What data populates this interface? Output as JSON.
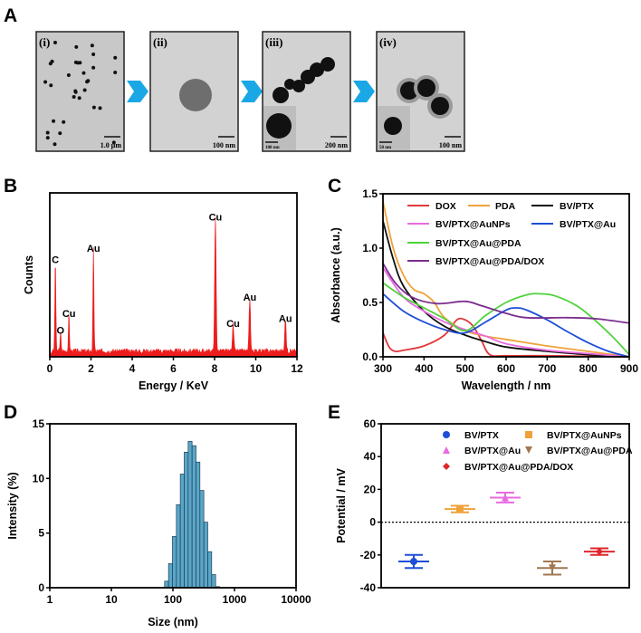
{
  "panels": {
    "A": "A",
    "B": "B",
    "C": "C",
    "D": "D",
    "E": "E"
  },
  "tem_images": [
    {
      "label": "(i)",
      "scale_bar": "1.0 μm"
    },
    {
      "label": "(ii)",
      "scale_bar": "100 nm"
    },
    {
      "label": "(iii)",
      "scale_bar": "200 nm",
      "inset_scale_bar": "100 nm"
    },
    {
      "label": "(iv)",
      "scale_bar": "100 nm",
      "inset_scale_bar": "50 nm"
    }
  ],
  "arrow_color": "#1aa7e6",
  "chart_data": [
    {
      "panel": "B",
      "type": "line",
      "xlabel": "Energy / KeV",
      "ylabel": "Counts",
      "xlim": [
        0,
        12
      ],
      "xticks": [
        0,
        2,
        4,
        6,
        8,
        10,
        12
      ],
      "color": "#ee1c1c",
      "peaks": [
        {
          "label": "C",
          "energy": 0.27,
          "counts": 0.55
        },
        {
          "label": "O",
          "energy": 0.52,
          "counts": 0.12
        },
        {
          "label": "Cu",
          "energy": 0.93,
          "counts": 0.22
        },
        {
          "label": "Au",
          "energy": 2.12,
          "counts": 0.62
        },
        {
          "label": "Cu",
          "energy": 8.04,
          "counts": 0.81
        },
        {
          "label": "Cu",
          "energy": 8.9,
          "counts": 0.16
        },
        {
          "label": "Au",
          "energy": 9.71,
          "counts": 0.32
        },
        {
          "label": "Au",
          "energy": 11.44,
          "counts": 0.19
        }
      ]
    },
    {
      "panel": "C",
      "type": "line",
      "xlabel": "Wavelength / nm",
      "ylabel": "Absorbance (a.u.)",
      "xlim": [
        300,
        900
      ],
      "ylim": [
        0,
        1.5
      ],
      "xticks": [
        300,
        400,
        500,
        600,
        700,
        800,
        900
      ],
      "yticks": [
        "0.0",
        "0.5",
        "1.0",
        "1.5"
      ],
      "legend": "top-right",
      "series": [
        {
          "name": "DOX",
          "color": "#e0393b",
          "x": [
            300,
            315,
            330,
            350,
            400,
            450,
            480,
            500,
            520,
            540,
            560,
            600,
            700,
            800,
            900
          ],
          "y": [
            0.22,
            0.09,
            0.05,
            0.06,
            0.1,
            0.2,
            0.34,
            0.34,
            0.28,
            0.15,
            0.02,
            0.01,
            0.01,
            0.005,
            0
          ]
        },
        {
          "name": "PDA",
          "color": "#f0a23a",
          "x": [
            300,
            325,
            350,
            375,
            400,
            425,
            450,
            500,
            550,
            600,
            700,
            800,
            900
          ],
          "y": [
            1.43,
            1.0,
            0.75,
            0.62,
            0.58,
            0.5,
            0.36,
            0.24,
            0.19,
            0.16,
            0.1,
            0.05,
            0
          ]
        },
        {
          "name": "BV/PTX",
          "color": "#111111",
          "x": [
            300,
            325,
            350,
            400,
            450,
            500,
            550,
            600,
            700,
            800,
            900
          ],
          "y": [
            1.25,
            0.9,
            0.65,
            0.42,
            0.28,
            0.2,
            0.14,
            0.09,
            0.05,
            0.02,
            0
          ]
        },
        {
          "name": "BV/PTX@AuNPs",
          "color": "#e86be0",
          "x": [
            300,
            350,
            400,
            450,
            500,
            550,
            600,
            700,
            800,
            900
          ],
          "y": [
            0.82,
            0.55,
            0.42,
            0.32,
            0.25,
            0.19,
            0.12,
            0.06,
            0.03,
            0
          ]
        },
        {
          "name": "BV/PTX@Au",
          "color": "#1f4fd6",
          "x": [
            300,
            350,
            400,
            450,
            500,
            550,
            600,
            625,
            650,
            700,
            750,
            800,
            850,
            900
          ],
          "y": [
            0.58,
            0.42,
            0.32,
            0.25,
            0.22,
            0.32,
            0.43,
            0.45,
            0.43,
            0.34,
            0.23,
            0.13,
            0.05,
            0
          ]
        },
        {
          "name": "BV/PTX@Au@PDA",
          "color": "#4fd23c",
          "x": [
            300,
            350,
            400,
            450,
            500,
            550,
            600,
            650,
            680,
            720,
            780,
            850,
            900
          ],
          "y": [
            0.68,
            0.55,
            0.45,
            0.35,
            0.24,
            0.38,
            0.5,
            0.57,
            0.58,
            0.56,
            0.45,
            0.22,
            0.02
          ]
        },
        {
          "name": "BV/PTX@Au@PDA/DOX",
          "color": "#7b2d8e",
          "x": [
            300,
            330,
            370,
            430,
            500,
            540,
            600,
            650,
            750,
            820,
            900
          ],
          "y": [
            0.86,
            0.68,
            0.55,
            0.49,
            0.51,
            0.47,
            0.4,
            0.36,
            0.36,
            0.35,
            0.31
          ]
        }
      ]
    },
    {
      "panel": "D",
      "type": "bar",
      "xlabel": "Size (nm)",
      "ylabel": "Intensity (%)",
      "xscale": "log",
      "xlim": [
        1,
        10000
      ],
      "ylim": [
        0,
        15
      ],
      "xticks": [
        "1",
        "10",
        "100",
        "1000",
        "10000"
      ],
      "yticks": [
        "0",
        "5",
        "10",
        "15"
      ],
      "color": "#5aa6c8",
      "x": [
        78.8,
        91.3,
        105.7,
        122.4,
        141.8,
        164.2,
        190.1,
        220.2,
        255.0,
        295.3,
        342.0,
        396.1,
        458.7,
        531.2
      ],
      "values": [
        0.6,
        2.2,
        4.7,
        7.6,
        10.4,
        12.4,
        13.4,
        13.0,
        11.5,
        8.9,
        6.0,
        3.3,
        1.2,
        0.1
      ]
    },
    {
      "panel": "E",
      "type": "scatter",
      "ylabel": "Potential / mV",
      "ylim": [
        -40,
        60
      ],
      "yticks": [
        "-40",
        "-20",
        "0",
        "20",
        "40",
        "60"
      ],
      "legend": "top",
      "series": [
        {
          "name": "BV/PTX",
          "color": "#1f4fd6",
          "marker": "circle",
          "mean": -24,
          "error": 4
        },
        {
          "name": "BV/PTX@AuNPs",
          "color": "#f0a23a",
          "marker": "square",
          "mean": 8,
          "error": 2
        },
        {
          "name": "BV/PTX@Au",
          "color": "#e86be0",
          "marker": "triangle-up",
          "mean": 15,
          "error": 3
        },
        {
          "name": "BV/PTX@Au@PDA",
          "color": "#a07850",
          "marker": "triangle-down",
          "mean": -28,
          "error": 4
        },
        {
          "name": "BV/PTX@Au@PDA/DOX",
          "color": "#e0262b",
          "marker": "diamond",
          "mean": -18,
          "error": 2
        }
      ]
    }
  ]
}
